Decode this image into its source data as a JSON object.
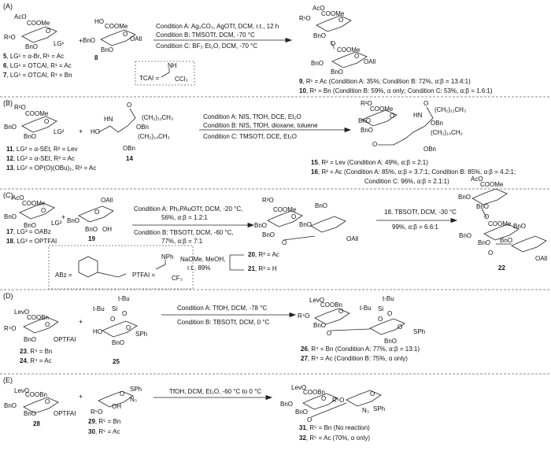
{
  "sections": {
    "A": {
      "label": "(A)",
      "conditions": [
        "Condition A: Ag₂CO₃, AgOTf, DCM, r.t., 12 h",
        "Condition B: TMSOTf, DCM, -70 °C",
        "Condition C: BF₃·Et₂O, DCM, -70 °C"
      ],
      "plus": "+",
      "compounds": [
        {
          "num": "5",
          "text": ", LG¹ = α-Br, R¹ = Ac"
        },
        {
          "num": "6",
          "text": ", LG¹ = OTCAI, R¹ = Ac"
        },
        {
          "num": "7",
          "text": ", LG¹ = OTCAI, R¹ = Bn"
        },
        {
          "num": "8",
          "text": ""
        },
        {
          "num": "9",
          "text": ", R¹ = Ac (Condition A: 35%; Condition B: 72%, α:β = 13.4:1)"
        },
        {
          "num": "10",
          "text": ", R¹ = Bn (Condition B: 59%, α only; Condition C: 53%, α:β = 1.6:1)"
        }
      ],
      "subs": [
        "AcO",
        "COOMe",
        "O",
        "R¹O",
        "BnO",
        "LG¹",
        "HO",
        "COOMe",
        "O",
        "BnO",
        "BnO",
        "OAll",
        "AcO",
        "COOMe",
        "O",
        "R¹O",
        "BnO",
        "O",
        "COOMe",
        "O",
        "BnO",
        "BnO",
        "OAll",
        "NH",
        "TCAI =",
        "CCl₃"
      ]
    },
    "B": {
      "label": "(B)",
      "conditions": [
        "Condition A: NIS, TfOH, DCE, Et₂O",
        "Condition B: NIS, TfOH, dioxane, toluene",
        "Condition C: TMSOTf, DCE, Et₂O"
      ],
      "plus": "+",
      "compounds": [
        {
          "num": "11",
          "text": ", LG² = α-SEt, R² = Lev"
        },
        {
          "num": "12",
          "text": ", LG² = α-SEt, R² = Ac"
        },
        {
          "num": "13",
          "text": ", LG² = OP(O)(OBu)₂, R² = Ac"
        },
        {
          "num": "14",
          "text": ""
        },
        {
          "num": "15",
          "text": ", R² = Lev (Condition A: 49%, α:β = 2:1)"
        },
        {
          "num": "16",
          "text": ", R² = Ac (Condition A: 85%, α:β = 3.7:1; Condition B: 85%, α:β = 4.2:1;"
        },
        {
          "num": "",
          "text": "Condition C: 96%, α:β = 2.1:1)"
        }
      ],
      "subs": [
        "R²O",
        "COOMe",
        "O",
        "BnO",
        "BnO",
        "LG²",
        "O",
        "HN",
        "(CH₂)₁₁CH₃",
        "OBn",
        "HO",
        "(CH₂)₁₄CH₃",
        "OBn",
        "R²O",
        "COOMe",
        "O",
        "BnO",
        "BnO",
        "O",
        "HN",
        "O",
        "(CH₂)₁₁CH₃",
        "OBn",
        "(CH₂)₁₄CH₃",
        "OBn"
      ]
    },
    "C": {
      "label": "(C)",
      "conditions": [
        "Condition A: Ph₃PAuOTf, DCM, -20 °C,",
        "56%, α:β = 1.2:1",
        "Condition B: TBSOTf, DCM, -60 °C,",
        "77%, α:β = 7:1",
        "18, TBSOTf, DCM, -30 °C",
        "99%, α:β = 6.6:1"
      ],
      "plus": "+",
      "compounds": [
        {
          "num": "17",
          "text": ", LG³ = OABz"
        },
        {
          "num": "18",
          "text": ", LG³ = OPTFAI"
        },
        {
          "num": "19",
          "text": ""
        },
        {
          "num": "20",
          "text": ", R³ = Ac"
        },
        {
          "num": "21",
          "text": ", R³ = H"
        },
        {
          "num": "22",
          "text": ""
        }
      ],
      "subs": [
        "AcO",
        "COOMe",
        "O",
        "BnO",
        "BnO",
        "LG³",
        "OAll",
        "O",
        "BnO",
        "BnO",
        "OH",
        "R³O",
        "COOMe",
        "O",
        "BnO",
        "BnO",
        "O",
        "BnO",
        "BnO",
        "OAll",
        "AcO",
        "COOMe",
        "BnO",
        "BnO",
        "O",
        "COOMe",
        "BnO",
        "BnO",
        "O",
        "BnO",
        "BnO",
        "OAll",
        "ABz =",
        "PTFAI =",
        "NPh",
        "CF₃",
        "NaOMe, MeOH,",
        "r.t., 89%"
      ]
    },
    "D": {
      "label": "(D)",
      "conditions": [
        "Condition A: TfOH, DCM, -78 °C",
        "Condition B: TBSOTf, DCM, 0 °C"
      ],
      "plus": "+",
      "compounds": [
        {
          "num": "23",
          "text": ", R⁴ = Bn"
        },
        {
          "num": "24",
          "text": ", R⁴ = Ac"
        },
        {
          "num": "25",
          "text": ""
        },
        {
          "num": "26",
          "text": ", R⁴ = Bn (Condition A: 77%, α:β = 13:1)"
        },
        {
          "num": "27",
          "text": ", R⁴ = Ac (Condition B: 75%, α only)"
        }
      ],
      "subs": [
        "LevO",
        "COOBn",
        "O",
        "R⁴O",
        "BnO",
        "OPTFAI",
        "t-Bu",
        "t-Bu",
        "Si",
        "O",
        "O",
        "O",
        "HO",
        "SPh",
        "BnO",
        "LevO",
        "COOBn",
        "O",
        "R⁴O",
        "BnO",
        "O",
        "t-Bu",
        "t-Bu",
        "Si",
        "O",
        "O",
        "O",
        "SPh",
        "BnO"
      ]
    },
    "E": {
      "label": "(E)",
      "conditions": [
        "TfOH, DCM, Et₂O, -60 °C to 0 °C"
      ],
      "plus": "+",
      "compounds": [
        {
          "num": "28",
          "text": ""
        },
        {
          "num": "29",
          "text": ", R⁵ = Bn"
        },
        {
          "num": "30",
          "text": ", R⁵ = Ac"
        },
        {
          "num": "31",
          "text": ", R⁵ = Bn (No reaction)"
        },
        {
          "num": "32",
          "text": ", R⁵ = Ac (70%, α only)"
        }
      ],
      "subs": [
        "LevO",
        "COOBn",
        "O",
        "BnO",
        "BnO",
        "OPTFAI",
        "O",
        "SPh",
        "N₃",
        "OH",
        "R⁵O",
        "LevO",
        "COOBn",
        "O",
        "BnO",
        "BnO",
        "O",
        "R⁵O",
        "O",
        "N₃",
        "SPh"
      ]
    }
  }
}
